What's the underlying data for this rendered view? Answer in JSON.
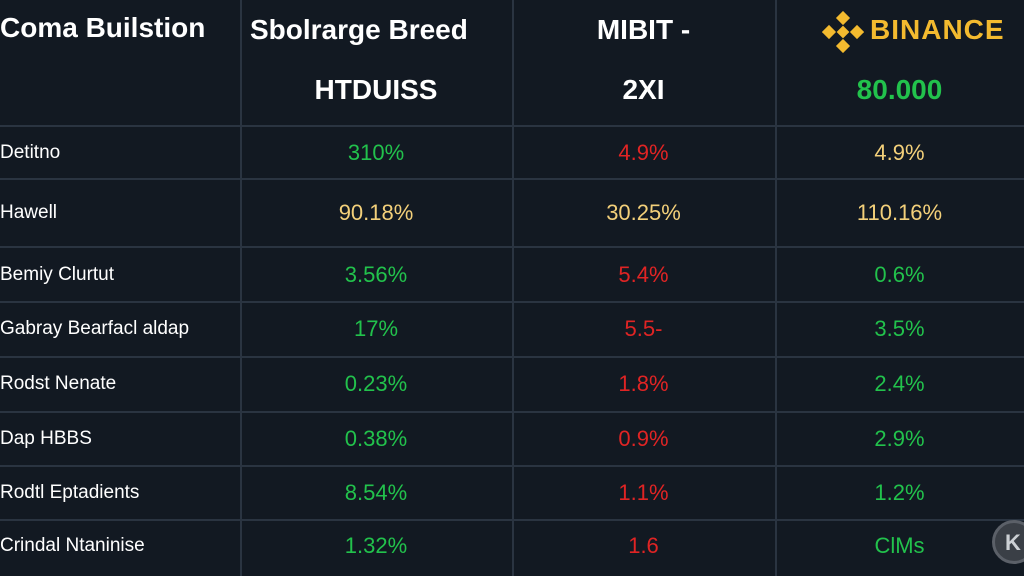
{
  "header": {
    "col1_title": "Coma Builstion",
    "col2_title": "Sbolrarge Breed",
    "col2_sub": "HTDUISS",
    "col3_title": "MIBIT -",
    "col3_sub": "2XI",
    "col4_title": "BINANCE",
    "col4_sub": "80.000",
    "col4_sub_color": "#22c24c",
    "logo_icon": "binance-logo-icon"
  },
  "rows": [
    {
      "label": "Detitno",
      "c2": "310%",
      "c3": "4.9%",
      "c4": "4.9%",
      "colors": [
        "green",
        "red",
        "yellow"
      ]
    },
    {
      "label": "Hawell",
      "c2": "90.18%",
      "c3": "30.25%",
      "c4": "110.16%",
      "colors": [
        "yellow",
        "yellow",
        "yellow"
      ]
    },
    {
      "label": "Bemiy Clurtut",
      "c2": "3.56%",
      "c3": "5.4%",
      "c4": "0.6%",
      "colors": [
        "green",
        "red",
        "green"
      ]
    },
    {
      "label": "Gabray Bearfacl aldap",
      "c2": "17%",
      "c3": "5.5-",
      "c4": "3.5%",
      "colors": [
        "green",
        "red",
        "green"
      ]
    },
    {
      "label": "Rodst Nenate",
      "c2": "0.23%",
      "c3": "1.8%",
      "c4": "2.4%",
      "colors": [
        "green",
        "red",
        "green"
      ]
    },
    {
      "label": "Dap HBBS",
      "c2": "0.38%",
      "c3": "0.9%",
      "c4": "2.9%",
      "colors": [
        "green",
        "red",
        "green"
      ]
    },
    {
      "label": "Rodtl Eptadients",
      "c2": "8.54%",
      "c3": "1.1%",
      "c4": "1.2%",
      "colors": [
        "green",
        "red",
        "green"
      ]
    },
    {
      "label": "Crindal Ntaninise",
      "c2": "1.32%",
      "c3": "1.6",
      "c4": "ClMs",
      "colors": [
        "green",
        "red",
        "green"
      ]
    }
  ],
  "palette": {
    "background": "#121922",
    "grid": "#2a3441",
    "green": "#22c24c",
    "red": "#e02424",
    "yellow": "#f3d07a",
    "binance_gold": "#f3ba2f"
  }
}
